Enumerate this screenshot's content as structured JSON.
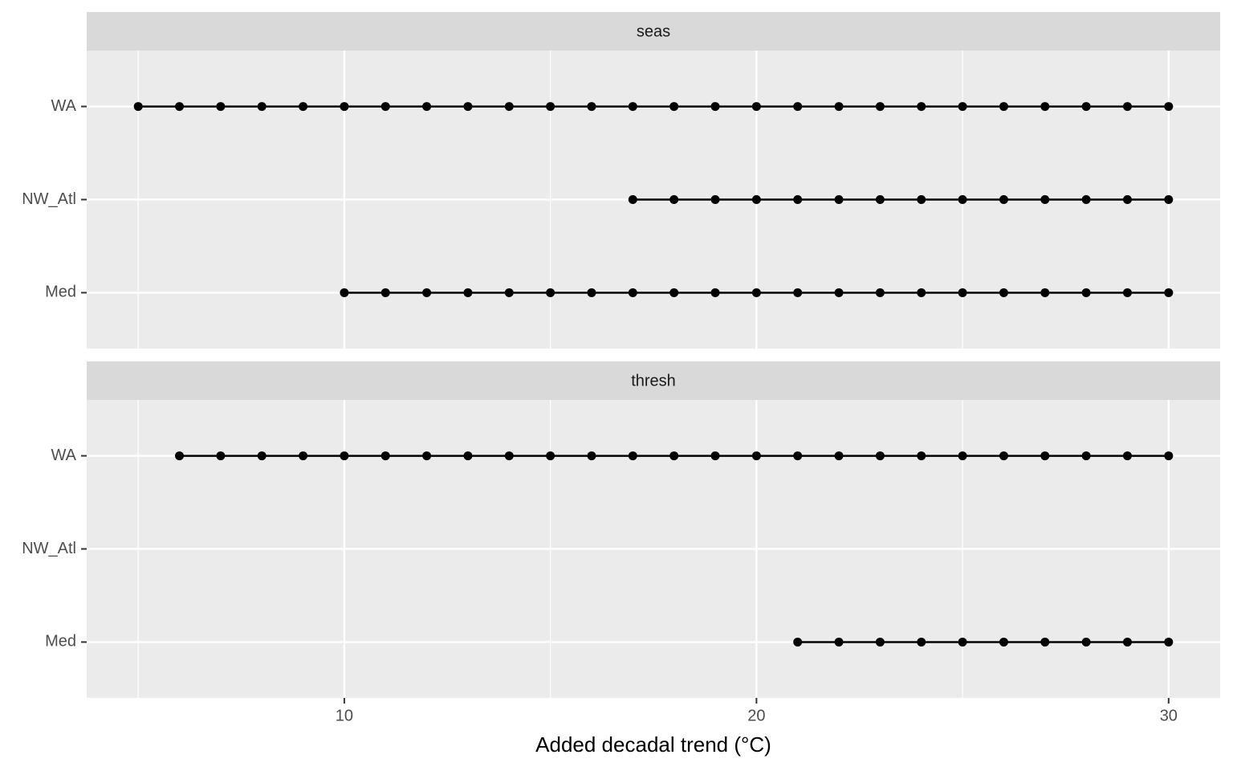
{
  "chart_data": {
    "type": "line",
    "x_label": "Added decadal trend (°C)",
    "xlim": [
      3.75,
      31.25
    ],
    "xticks": [
      10,
      20,
      30
    ],
    "minor_xticks": [
      5,
      15,
      25
    ],
    "grid": true,
    "color": "#000000",
    "categories": [
      "WA",
      "NW_Atl",
      "Med"
    ],
    "facets": [
      {
        "title": "seas",
        "values": [
          [
            5,
            6,
            7,
            8,
            9,
            10,
            11,
            12,
            13,
            14,
            15,
            16,
            17,
            18,
            19,
            20,
            21,
            22,
            23,
            24,
            25,
            26,
            27,
            28,
            29,
            30
          ],
          [
            17,
            18,
            19,
            20,
            21,
            22,
            23,
            24,
            25,
            26,
            27,
            28,
            29,
            30
          ],
          [
            10,
            11,
            12,
            13,
            14,
            15,
            16,
            17,
            18,
            19,
            20,
            21,
            22,
            23,
            24,
            25,
            26,
            27,
            28,
            29,
            30
          ]
        ]
      },
      {
        "title": "thresh",
        "values": [
          [
            6,
            7,
            8,
            9,
            10,
            11,
            12,
            13,
            14,
            15,
            16,
            17,
            18,
            19,
            20,
            21,
            22,
            23,
            24,
            25,
            26,
            27,
            28,
            29,
            30
          ],
          [],
          [
            21,
            22,
            23,
            24,
            25,
            26,
            27,
            28,
            29,
            30
          ]
        ]
      }
    ]
  }
}
